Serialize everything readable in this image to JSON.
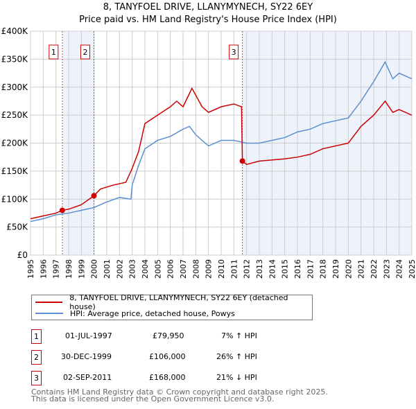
{
  "title": "8, TANYFOEL DRIVE, LLANYMYNECH, SY22 6EY",
  "subtitle": "Price paid vs. HM Land Registry's House Price Index (HPI)",
  "chart_data": {
    "type": "line",
    "xlim": [
      1995,
      2025
    ],
    "ylim": [
      0,
      400000
    ],
    "yticks": [
      0,
      50000,
      100000,
      150000,
      200000,
      250000,
      300000,
      350000,
      400000
    ],
    "ytick_labels": [
      "£0",
      "£50K",
      "£100K",
      "£150K",
      "£200K",
      "£250K",
      "£300K",
      "£350K",
      "£400K"
    ],
    "xticks": [
      1995,
      1996,
      1997,
      1998,
      1999,
      2000,
      2001,
      2002,
      2003,
      2004,
      2005,
      2006,
      2007,
      2008,
      2009,
      2010,
      2011,
      2012,
      2013,
      2014,
      2015,
      2016,
      2017,
      2018,
      2019,
      2020,
      2021,
      2022,
      2023,
      2024,
      2025
    ],
    "grid": true,
    "shaded_regions": [
      [
        1997.5,
        1999.99
      ],
      [
        2011.67,
        2025
      ]
    ],
    "series": [
      {
        "name": "8, TANYFOEL DRIVE, LLANYMYNECH, SY22 6EY (detached house)",
        "color": "#cc0000",
        "x": [
          1995,
          1996,
          1997,
          1997.5,
          1998,
          1999,
          1999.99,
          2000.5,
          2001.5,
          2002.5,
          2003,
          2003.5,
          2004,
          2005,
          2006,
          2006.5,
          2007,
          2007.7,
          2008.5,
          2009,
          2010,
          2011,
          2011.6,
          2011.67,
          2012,
          2013,
          2014,
          2015,
          2016,
          2017,
          2018,
          2019,
          2020,
          2021,
          2022,
          2022.9,
          2023.5,
          2024,
          2025
        ],
        "y": [
          65000,
          70000,
          75000,
          79950,
          82000,
          90000,
          106000,
          118000,
          125000,
          130000,
          155000,
          185000,
          235000,
          250000,
          265000,
          275000,
          265000,
          298000,
          265000,
          255000,
          265000,
          270000,
          265000,
          168000,
          162000,
          168000,
          170000,
          172000,
          175000,
          180000,
          190000,
          195000,
          200000,
          230000,
          250000,
          275000,
          255000,
          260000,
          250000
        ]
      },
      {
        "name": "HPI: Average price, detached house, Powys",
        "color": "#5b8fd0",
        "x": [
          1995,
          1996,
          1997,
          1998,
          1999,
          2000,
          2001,
          2002,
          2002.9,
          2003,
          2003.5,
          2004,
          2005,
          2006,
          2007,
          2007.5,
          2008,
          2009,
          2010,
          2011,
          2012,
          2013,
          2014,
          2015,
          2016,
          2017,
          2018,
          2019,
          2020,
          2021,
          2022,
          2022.9,
          2023.5,
          2024,
          2025
        ],
        "y": [
          60000,
          65000,
          72000,
          75000,
          80000,
          85000,
          95000,
          103000,
          100000,
          125000,
          160000,
          190000,
          205000,
          212000,
          225000,
          230000,
          215000,
          195000,
          205000,
          205000,
          200000,
          200000,
          205000,
          210000,
          220000,
          225000,
          235000,
          240000,
          245000,
          275000,
          310000,
          345000,
          315000,
          325000,
          315000
        ]
      }
    ],
    "markers": [
      {
        "label": "1",
        "x": 1997.5,
        "y": 79950
      },
      {
        "label": "2",
        "x": 1999.99,
        "y": 106000
      },
      {
        "label": "3",
        "x": 2011.67,
        "y": 168000
      }
    ]
  },
  "legend": {
    "red": "8, TANYFOEL DRIVE, LLANYMYNECH, SY22 6EY (detached house)",
    "blue": "HPI: Average price, detached house, Powys"
  },
  "transactions": [
    {
      "num": "1",
      "date": "01-JUL-1997",
      "price": "£79,950",
      "hpi": "7% ↑ HPI"
    },
    {
      "num": "2",
      "date": "30-DEC-1999",
      "price": "£106,000",
      "hpi": "26% ↑ HPI"
    },
    {
      "num": "3",
      "date": "02-SEP-2011",
      "price": "£168,000",
      "hpi": "21% ↓ HPI"
    }
  ],
  "footer": {
    "line1": "Contains HM Land Registry data © Crown copyright and database right 2025.",
    "line2": "This data is licensed under the Open Government Licence v3.0."
  }
}
